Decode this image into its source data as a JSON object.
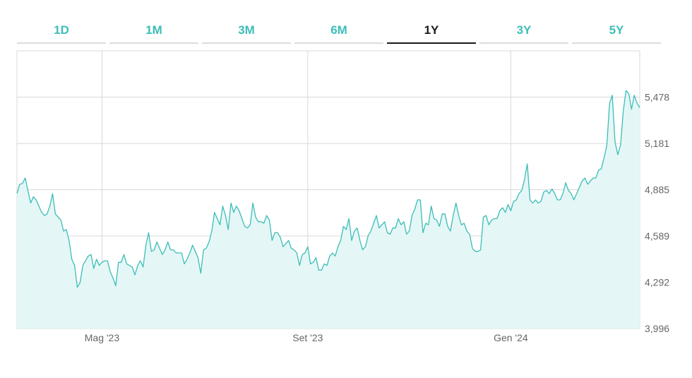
{
  "tabs": [
    {
      "label": "1D",
      "active": false
    },
    {
      "label": "1M",
      "active": false
    },
    {
      "label": "3M",
      "active": false
    },
    {
      "label": "6M",
      "active": false
    },
    {
      "label": "1Y",
      "active": true
    },
    {
      "label": "3Y",
      "active": false
    },
    {
      "label": "5Y",
      "active": false
    }
  ],
  "colors": {
    "accent": "#3dbdb8",
    "area_fill": "#e4f7f6",
    "active_tab_text": "#1a1a1a",
    "grid": "#d9d9d9"
  },
  "chart_data": {
    "type": "area",
    "xlabel": "",
    "ylabel": "",
    "ylim": [
      3996,
      5774
    ],
    "y_ticks": [
      "5,478",
      "5,181",
      "4,885",
      "4,589",
      "4,292",
      "3,996"
    ],
    "y_tick_values": [
      5478,
      5181,
      4885,
      4589,
      4292,
      3996
    ],
    "x_ticks": [
      "Mag '23",
      "Set '23",
      "Gen '24"
    ],
    "x_tick_index": [
      31,
      106,
      180
    ],
    "grid": true,
    "series": [
      {
        "values": [
          4860,
          4920,
          4925,
          4960,
          4880,
          4800,
          4840,
          4820,
          4780,
          4740,
          4720,
          4730,
          4780,
          4860,
          4730,
          4710,
          4690,
          4620,
          4630,
          4560,
          4440,
          4400,
          4260,
          4290,
          4400,
          4430,
          4460,
          4470,
          4380,
          4440,
          4400,
          4420,
          4430,
          4430,
          4360,
          4320,
          4270,
          4420,
          4420,
          4470,
          4410,
          4400,
          4390,
          4340,
          4400,
          4430,
          4390,
          4530,
          4610,
          4490,
          4500,
          4550,
          4510,
          4470,
          4500,
          4550,
          4500,
          4500,
          4480,
          4480,
          4480,
          4410,
          4440,
          4480,
          4530,
          4490,
          4450,
          4350,
          4500,
          4510,
          4550,
          4620,
          4740,
          4700,
          4660,
          4780,
          4720,
          4630,
          4800,
          4740,
          4780,
          4750,
          4700,
          4650,
          4640,
          4660,
          4800,
          4710,
          4680,
          4680,
          4670,
          4720,
          4690,
          4560,
          4610,
          4610,
          4580,
          4520,
          4540,
          4560,
          4510,
          4500,
          4480,
          4400,
          4470,
          4480,
          4520,
          4410,
          4420,
          4450,
          4370,
          4370,
          4410,
          4400,
          4460,
          4480,
          4460,
          4520,
          4560,
          4650,
          4630,
          4700,
          4560,
          4620,
          4640,
          4560,
          4500,
          4520,
          4590,
          4620,
          4670,
          4720,
          4640,
          4660,
          4680,
          4610,
          4600,
          4640,
          4640,
          4700,
          4660,
          4680,
          4600,
          4620,
          4720,
          4760,
          4820,
          4820,
          4610,
          4670,
          4660,
          4780,
          4700,
          4690,
          4650,
          4730,
          4730,
          4650,
          4620,
          4720,
          4800,
          4720,
          4660,
          4670,
          4620,
          4600,
          4510,
          4490,
          4490,
          4500,
          4710,
          4720,
          4660,
          4690,
          4700,
          4700,
          4750,
          4770,
          4740,
          4790,
          4750,
          4810,
          4820,
          4860,
          4880,
          4950,
          5050,
          4820,
          4800,
          4820,
          4800,
          4810,
          4870,
          4880,
          4860,
          4890,
          4860,
          4820,
          4820,
          4860,
          4930,
          4880,
          4860,
          4820,
          4860,
          4900,
          4940,
          4960,
          4920,
          4940,
          4960,
          4960,
          5010,
          5020,
          5090,
          5170,
          5440,
          5490,
          5190,
          5110,
          5170,
          5390,
          5520,
          5500,
          5400,
          5490,
          5440,
          5410
        ]
      }
    ]
  }
}
